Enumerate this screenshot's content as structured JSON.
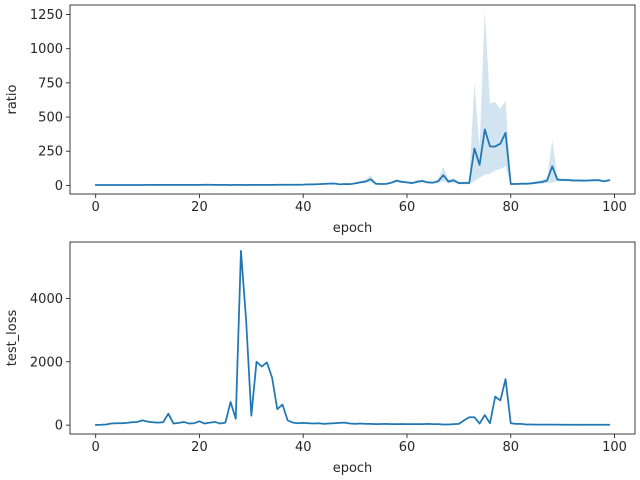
{
  "chart_data": [
    {
      "type": "line",
      "xlabel": "epoch",
      "ylabel": "ratio",
      "xlim": [
        -4.95,
        103.95
      ],
      "ylim": [
        -62.8,
        1319.6
      ],
      "xticks": [
        0,
        20,
        40,
        60,
        80,
        100
      ],
      "yticks": [
        0,
        250,
        500,
        750,
        1000,
        1250
      ],
      "line_color": "#1f77b4",
      "band_color": "#1f77b4",
      "series": [
        {
          "x": [
            0,
            1,
            2,
            3,
            4,
            5,
            6,
            7,
            8,
            9,
            10,
            11,
            12,
            13,
            14,
            15,
            16,
            17,
            18,
            19,
            20,
            21,
            22,
            23,
            24,
            25,
            26,
            27,
            28,
            29,
            30,
            31,
            32,
            33,
            34,
            35,
            36,
            37,
            38,
            39,
            40,
            41,
            42,
            43,
            44,
            45,
            46,
            47,
            48,
            49,
            50,
            51,
            52,
            53,
            54,
            55,
            56,
            57,
            58,
            59,
            60,
            61,
            62,
            63,
            64,
            65,
            66,
            67,
            68,
            69,
            70,
            71,
            72,
            73,
            74,
            75,
            76,
            77,
            78,
            79,
            80,
            81,
            82,
            83,
            84,
            85,
            86,
            87,
            88,
            89,
            90,
            91,
            92,
            93,
            94,
            95,
            96,
            97,
            98,
            99
          ],
          "y": [
            3,
            3,
            3,
            3,
            3,
            3,
            3,
            3,
            3,
            3,
            4,
            4,
            4,
            4,
            4,
            4,
            4,
            4,
            4,
            4,
            4,
            5,
            5,
            4,
            4,
            4,
            3,
            4,
            4,
            3,
            4,
            4,
            4,
            4,
            4,
            5,
            5,
            5,
            5,
            5,
            6,
            8,
            8,
            9,
            11,
            13,
            14,
            8,
            10,
            9,
            15,
            22,
            28,
            45,
            12,
            10,
            11,
            20,
            35,
            26,
            22,
            17,
            27,
            32,
            22,
            20,
            30,
            75,
            28,
            37,
            17,
            18,
            18,
            270,
            150,
            410,
            285,
            285,
            305,
            385,
            10,
            10,
            12,
            12,
            15,
            20,
            25,
            35,
            140,
            42,
            40,
            40,
            36,
            36,
            35,
            36,
            38,
            38,
            30,
            38
          ],
          "ci_lower": [
            1,
            1,
            1,
            1,
            1,
            1,
            1,
            1,
            1,
            1,
            2,
            2,
            2,
            2,
            2,
            2,
            2,
            2,
            2,
            2,
            2,
            3,
            3,
            2,
            2,
            2,
            1,
            2,
            2,
            1,
            2,
            2,
            2,
            2,
            2,
            3,
            3,
            3,
            3,
            3,
            4,
            5,
            5,
            6,
            7,
            9,
            10,
            5,
            7,
            6,
            10,
            16,
            20,
            22,
            5,
            5,
            6,
            13,
            25,
            18,
            15,
            11,
            18,
            22,
            14,
            12,
            18,
            30,
            15,
            20,
            8,
            8,
            8,
            30,
            55,
            80,
            85,
            110,
            120,
            140,
            4,
            4,
            5,
            5,
            7,
            10,
            12,
            18,
            20,
            30,
            30,
            30,
            28,
            28,
            27,
            28,
            30,
            30,
            22,
            30
          ],
          "ci_upper": [
            5,
            5,
            5,
            5,
            5,
            5,
            5,
            5,
            5,
            5,
            6,
            6,
            6,
            6,
            6,
            6,
            6,
            6,
            6,
            6,
            6,
            8,
            8,
            6,
            6,
            6,
            5,
            6,
            6,
            5,
            6,
            6,
            6,
            6,
            6,
            7,
            7,
            7,
            7,
            7,
            9,
            12,
            12,
            13,
            15,
            18,
            19,
            12,
            14,
            13,
            22,
            32,
            42,
            75,
            22,
            16,
            17,
            28,
            45,
            34,
            30,
            24,
            38,
            44,
            30,
            28,
            45,
            135,
            45,
            55,
            28,
            28,
            28,
            750,
            280,
            1275,
            600,
            610,
            560,
            620,
            18,
            18,
            20,
            20,
            24,
            30,
            40,
            55,
            330,
            55,
            50,
            50,
            45,
            45,
            44,
            45,
            48,
            48,
            40,
            48
          ]
        }
      ]
    },
    {
      "type": "line",
      "xlabel": "epoch",
      "ylabel": "test_loss",
      "xlim": [
        -4.95,
        103.95
      ],
      "ylim": [
        -280,
        5780
      ],
      "xticks": [
        0,
        20,
        40,
        60,
        80,
        100
      ],
      "yticks": [
        0,
        2000,
        4000
      ],
      "line_color": "#1f77b4",
      "series": [
        {
          "x": [
            0,
            1,
            2,
            3,
            4,
            5,
            6,
            7,
            8,
            9,
            10,
            11,
            12,
            13,
            14,
            15,
            16,
            17,
            18,
            19,
            20,
            21,
            22,
            23,
            24,
            25,
            26,
            27,
            28,
            29,
            30,
            31,
            32,
            33,
            34,
            35,
            36,
            37,
            38,
            39,
            40,
            41,
            42,
            43,
            44,
            45,
            46,
            47,
            48,
            49,
            50,
            51,
            52,
            53,
            54,
            55,
            56,
            57,
            58,
            59,
            60,
            61,
            62,
            63,
            64,
            65,
            66,
            67,
            68,
            69,
            70,
            71,
            72,
            73,
            74,
            75,
            76,
            77,
            78,
            79,
            80,
            81,
            82,
            83,
            84,
            85,
            86,
            87,
            88,
            89,
            90,
            91,
            92,
            93,
            94,
            95,
            96,
            97,
            98,
            99
          ],
          "y": [
            5,
            10,
            20,
            50,
            60,
            60,
            70,
            90,
            100,
            150,
            110,
            90,
            80,
            90,
            360,
            50,
            70,
            100,
            50,
            60,
            120,
            50,
            80,
            100,
            50,
            80,
            730,
            200,
            5500,
            3300,
            300,
            2000,
            1850,
            1980,
            1500,
            500,
            650,
            150,
            80,
            60,
            70,
            60,
            50,
            60,
            40,
            50,
            60,
            70,
            80,
            50,
            40,
            50,
            40,
            40,
            30,
            35,
            40,
            30,
            30,
            35,
            30,
            30,
            30,
            30,
            40,
            30,
            30,
            20,
            20,
            30,
            40,
            150,
            250,
            250,
            50,
            320,
            60,
            900,
            780,
            1450,
            60,
            40,
            40,
            20,
            20,
            15,
            15,
            15,
            15,
            15,
            10,
            10,
            10,
            10,
            10,
            10,
            10,
            10,
            10,
            10
          ]
        }
      ]
    }
  ]
}
